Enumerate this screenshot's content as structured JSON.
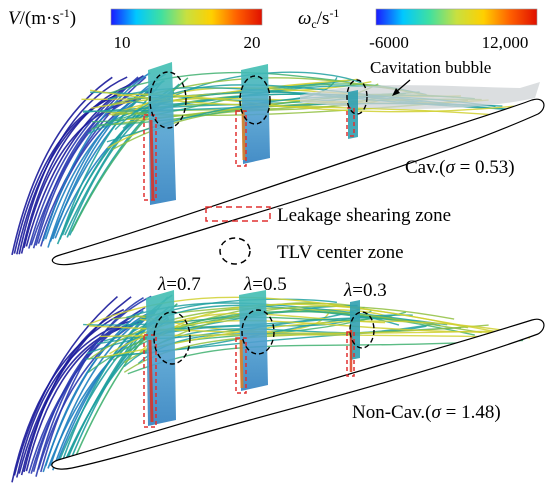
{
  "colorbars": {
    "velocity": {
      "label_symbol": "V",
      "label_unit_prefix": "/(m·s",
      "label_unit_exp": "-1",
      "label_unit_suffix": ")",
      "tick_min": "10",
      "tick_max": "20",
      "colors": [
        "#1a1aff",
        "#00c8ff",
        "#40e0a0",
        "#c8e040",
        "#ffd000",
        "#ff6000",
        "#e01000"
      ]
    },
    "vorticity": {
      "label_symbol": "ω",
      "label_sub": "c",
      "label_unit_prefix": "/s",
      "label_unit_exp": "-1",
      "tick_min": "-6000",
      "tick_max": "12,000",
      "colors": [
        "#1a1aff",
        "#00c8ff",
        "#40e0a0",
        "#c8e040",
        "#ffd000",
        "#ff6000",
        "#e01000"
      ]
    }
  },
  "annotations": {
    "cavitation_bubble": "Cavitation bubble",
    "cav_case_prefix": "Cav.(",
    "cav_case_sigma": "σ",
    "cav_case_value": " = 0.53)",
    "noncav_case_prefix": "Non-Cav.(",
    "noncav_case_sigma": "σ",
    "noncav_case_value": " = 1.48)"
  },
  "legend": {
    "leakage_zone": "Leakage shearing zone",
    "tlv_zone": "TLV center zone",
    "leakage_color": "#e03030",
    "tlv_color": "#000000"
  },
  "sections": [
    {
      "symbol": "λ",
      "value": "=0.7"
    },
    {
      "symbol": "λ",
      "value": "=0.5"
    },
    {
      "symbol": "λ",
      "value": "=0.3"
    }
  ],
  "streamline_colors": [
    "#1a1a9a",
    "#2a3ab0",
    "#1f7fc0",
    "#20a0a0",
    "#40b070",
    "#90c040",
    "#d0d030",
    "#e08020"
  ]
}
